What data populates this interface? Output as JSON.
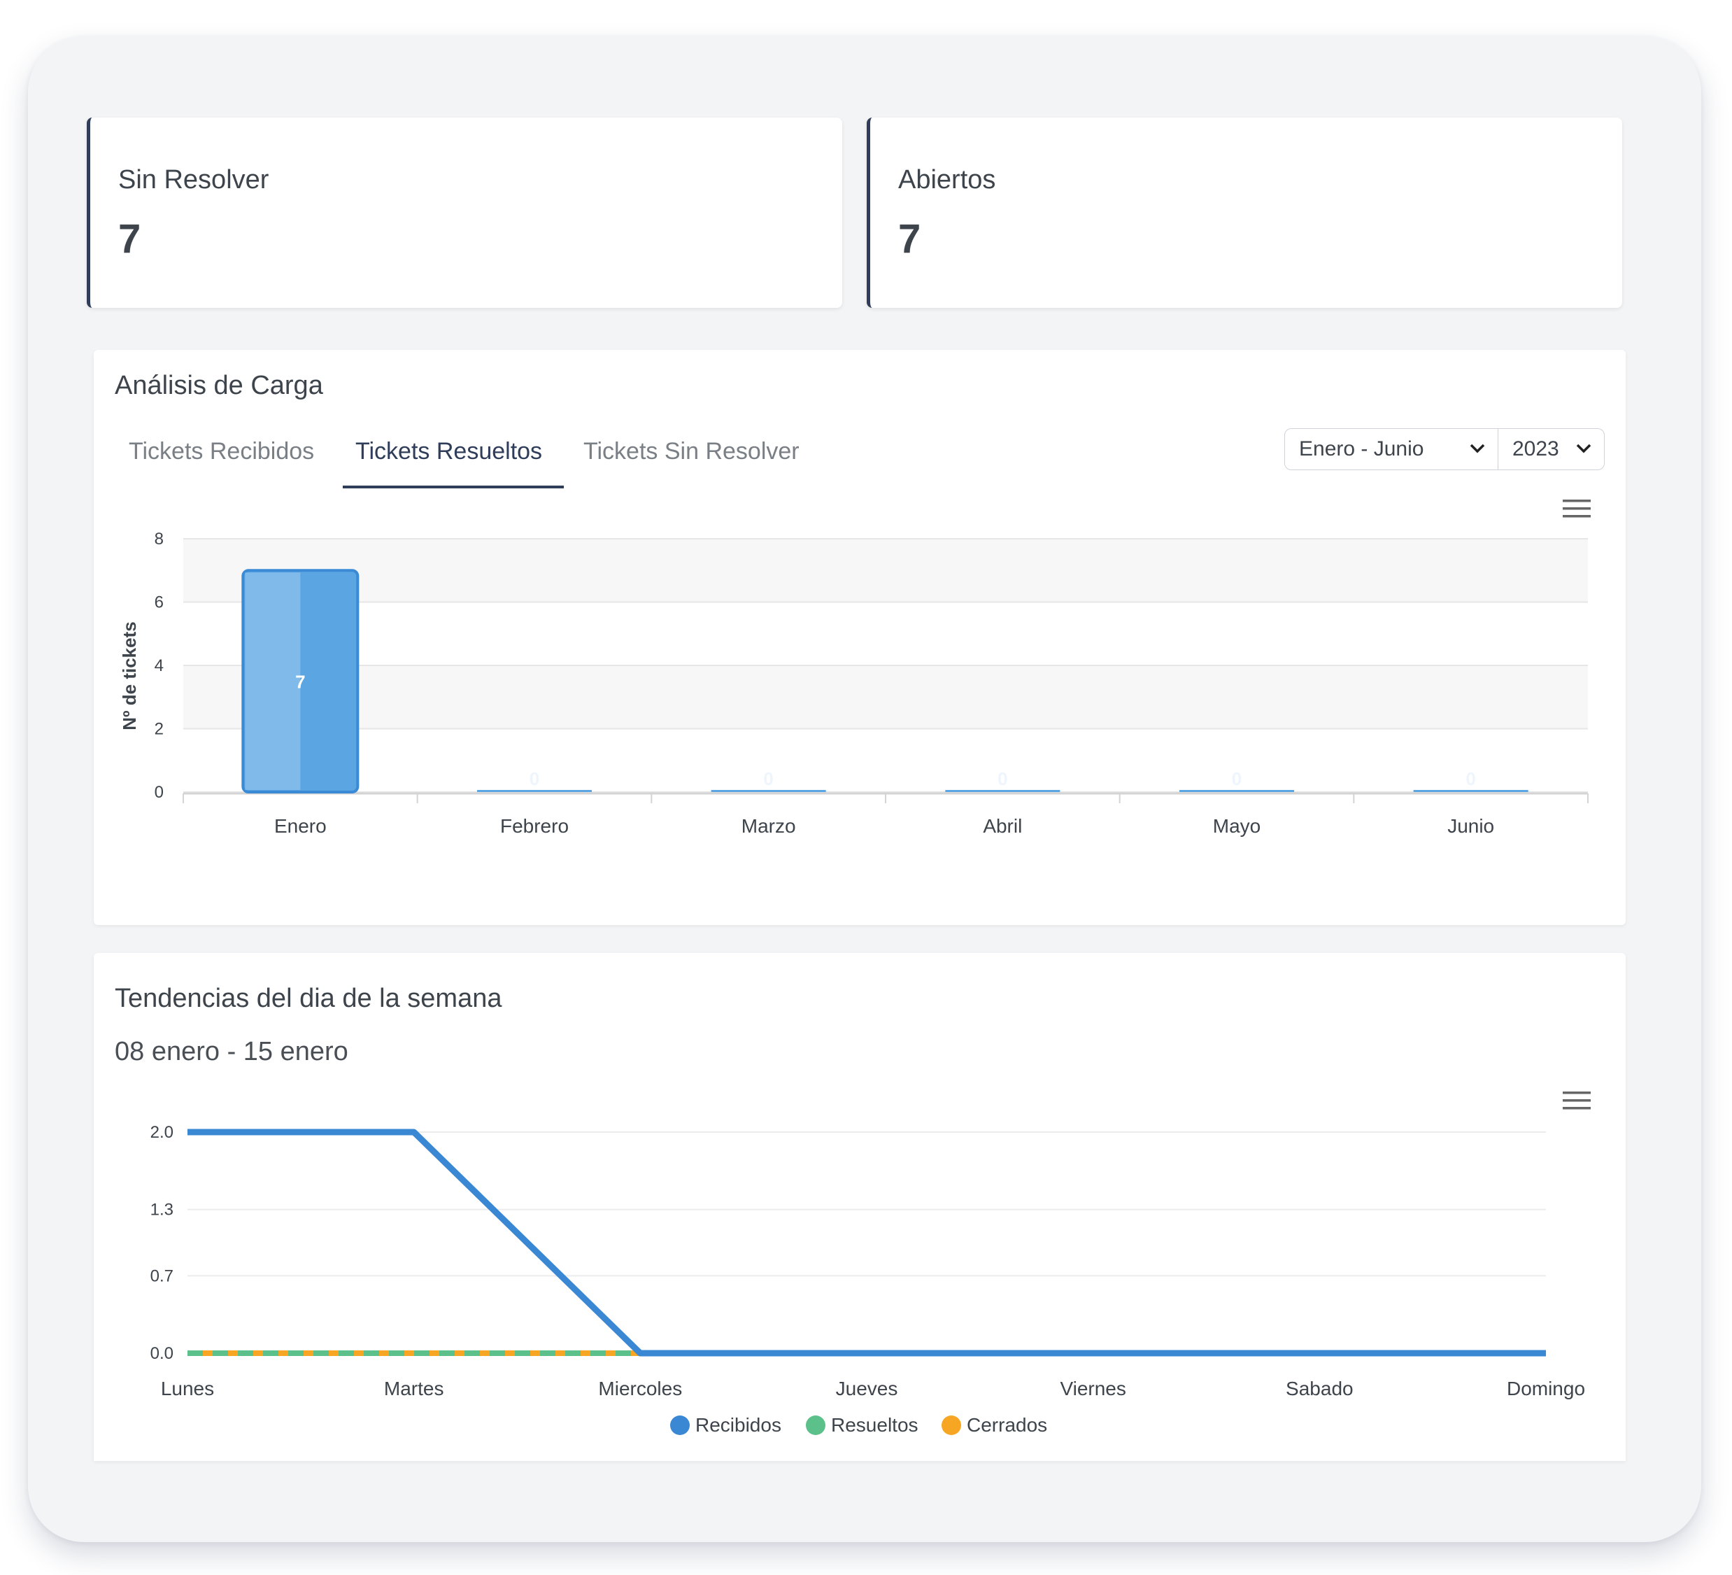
{
  "cards": [
    {
      "title": "Sin Resolver",
      "value": "7"
    },
    {
      "title": "Abiertos",
      "value": "7"
    }
  ],
  "load_analysis": {
    "title": "Análisis de Carga",
    "tabs": [
      {
        "label": "Tickets Recibidos",
        "active": false
      },
      {
        "label": "Tickets Resueltos",
        "active": true
      },
      {
        "label": "Tickets Sin Resolver",
        "active": false
      }
    ],
    "period_select": "Enero - Junio",
    "year_select": "2023",
    "menu_icon": "hamburger-menu-icon"
  },
  "weekday_trends": {
    "title": "Tendencias del dia de la semana",
    "subtitle": "08 enero - 15 enero",
    "menu_icon": "hamburger-menu-icon"
  },
  "chart_data": [
    {
      "type": "bar",
      "categories": [
        "Enero",
        "Febrero",
        "Marzo",
        "Abril",
        "Mayo",
        "Junio"
      ],
      "values": [
        7,
        0,
        0,
        0,
        0,
        0
      ],
      "data_labels": [
        "7",
        "0",
        "0",
        "0",
        "0",
        "0"
      ],
      "ylabel": "Nº de tickets",
      "ylim": [
        0,
        8
      ],
      "yticks": [
        "0",
        "2",
        "4",
        "6",
        "8"
      ],
      "grid": true,
      "bar_color": "#4f9fdf"
    },
    {
      "type": "line",
      "x": [
        "Lunes",
        "Martes",
        "Miercoles",
        "Jueves",
        "Viernes",
        "Sabado",
        "Domingo"
      ],
      "series": [
        {
          "name": "Recibidos",
          "values": [
            2,
            2,
            0,
            0,
            0,
            0,
            0
          ],
          "color": "#3a87d4"
        },
        {
          "name": "Resueltos",
          "values": [
            0,
            0,
            0,
            0,
            0,
            0,
            0
          ],
          "color": "#5cc08a"
        },
        {
          "name": "Cerrados",
          "values": [
            0,
            0,
            0,
            0,
            0,
            0,
            0
          ],
          "color": "#f6a623"
        }
      ],
      "ylim": [
        0,
        2
      ],
      "yticks": [
        "0.0",
        "0.7",
        "1.3",
        "2.0"
      ],
      "legend": "bottom-center",
      "grid": true
    }
  ]
}
